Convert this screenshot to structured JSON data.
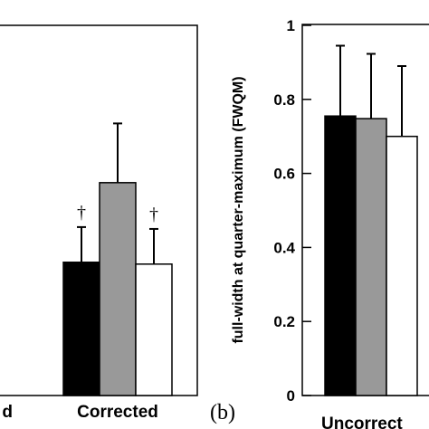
{
  "chart_data": [
    {
      "panel": "a",
      "type": "bar",
      "categories": [
        "d",
        "Corrected"
      ],
      "series": [
        {
          "color": "#000000",
          "values": [
            null,
            0.36
          ],
          "errors": [
            null,
            0.095
          ]
        },
        {
          "color": "#999999",
          "values": [
            null,
            0.575
          ],
          "errors": [
            null,
            0.16
          ]
        },
        {
          "color": "#ffffff",
          "values": [
            null,
            0.355
          ],
          "errors": [
            null,
            0.095
          ]
        }
      ],
      "annotations": [
        {
          "text": "†",
          "category": "Corrected",
          "series": 0
        },
        {
          "text": "†",
          "category": "Corrected",
          "series": 2
        }
      ],
      "ylim": [
        0,
        1
      ]
    },
    {
      "panel": "b",
      "panel_label": "(b)",
      "type": "bar",
      "categories": [
        "Uncorrect"
      ],
      "series": [
        {
          "color": "#000000",
          "values": [
            0.755
          ],
          "errors": [
            0.19
          ]
        },
        {
          "color": "#999999",
          "values": [
            0.748
          ],
          "errors": [
            0.175
          ]
        },
        {
          "color": "#ffffff",
          "values": [
            0.7
          ],
          "errors": [
            0.19
          ]
        }
      ],
      "ylabel": "full-width at quarter-maximum (FWQM)",
      "ylim": [
        0,
        1
      ],
      "yticks": [
        0,
        0.2,
        0.4,
        0.6,
        0.8,
        1
      ],
      "ytick_labels": [
        "0",
        "0.2",
        "0.4",
        "0.6",
        "0.8",
        "1"
      ]
    }
  ]
}
